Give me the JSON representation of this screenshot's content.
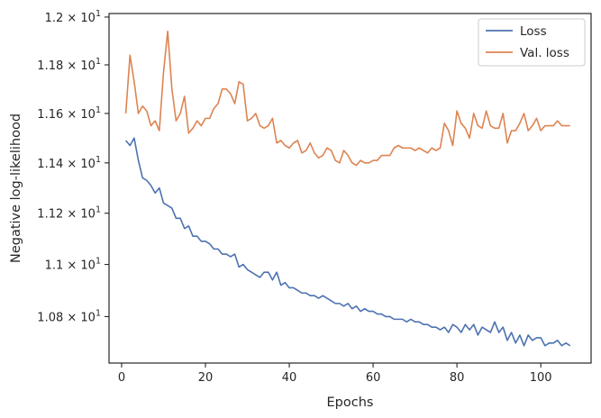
{
  "chart_data": {
    "type": "line",
    "title": "",
    "xlabel": "Epochs",
    "ylabel": "Negative log-likelihood",
    "xlim": [
      -3,
      112
    ],
    "ylim": [
      10.625,
      12.015
    ],
    "y_scale": "log",
    "grid": false,
    "legend_position": "top-right",
    "x_ticks": [
      {
        "value": 0,
        "label": "0"
      },
      {
        "value": 20,
        "label": "20"
      },
      {
        "value": 40,
        "label": "40"
      },
      {
        "value": 60,
        "label": "60"
      },
      {
        "value": 80,
        "label": "80"
      },
      {
        "value": 100,
        "label": "100"
      }
    ],
    "y_ticks": [
      {
        "value": 10.8,
        "mantissa": "1.08",
        "exponent": "1"
      },
      {
        "value": 11.0,
        "mantissa": "1.1",
        "exponent": "1"
      },
      {
        "value": 11.2,
        "mantissa": "1.12",
        "exponent": "1"
      },
      {
        "value": 11.4,
        "mantissa": "1.14",
        "exponent": "1"
      },
      {
        "value": 11.6,
        "mantissa": "1.16",
        "exponent": "1"
      },
      {
        "value": 11.8,
        "mantissa": "1.18",
        "exponent": "1"
      },
      {
        "value": 12.0,
        "mantissa": "1.2",
        "exponent": "1"
      }
    ],
    "x": [
      1,
      2,
      3,
      4,
      5,
      6,
      7,
      8,
      9,
      10,
      11,
      12,
      13,
      14,
      15,
      16,
      17,
      18,
      19,
      20,
      21,
      22,
      23,
      24,
      25,
      26,
      27,
      28,
      29,
      30,
      31,
      32,
      33,
      34,
      35,
      36,
      37,
      38,
      39,
      40,
      41,
      42,
      43,
      44,
      45,
      46,
      47,
      48,
      49,
      50,
      51,
      52,
      53,
      54,
      55,
      56,
      57,
      58,
      59,
      60,
      61,
      62,
      63,
      64,
      65,
      66,
      67,
      68,
      69,
      70,
      71,
      72,
      73,
      74,
      75,
      76,
      77,
      78,
      79,
      80,
      81,
      82,
      83,
      84,
      85,
      86,
      87,
      88,
      89,
      90,
      91,
      92,
      93,
      94,
      95,
      96,
      97,
      98,
      99,
      100,
      101,
      102,
      103,
      104,
      105,
      106,
      107
    ],
    "series": [
      {
        "name": "Loss",
        "color": "#4c72b0",
        "values": [
          11.49,
          11.47,
          11.5,
          11.41,
          11.34,
          11.33,
          11.31,
          11.28,
          11.3,
          11.24,
          11.23,
          11.22,
          11.18,
          11.18,
          11.14,
          11.15,
          11.11,
          11.11,
          11.09,
          11.09,
          11.08,
          11.06,
          11.06,
          11.04,
          11.04,
          11.03,
          11.04,
          10.99,
          11.0,
          10.98,
          10.97,
          10.96,
          10.95,
          10.97,
          10.97,
          10.94,
          10.97,
          10.92,
          10.93,
          10.91,
          10.91,
          10.9,
          10.89,
          10.89,
          10.88,
          10.88,
          10.87,
          10.88,
          10.87,
          10.86,
          10.85,
          10.85,
          10.84,
          10.85,
          10.83,
          10.84,
          10.82,
          10.83,
          10.82,
          10.82,
          10.81,
          10.81,
          10.8,
          10.8,
          10.79,
          10.79,
          10.79,
          10.78,
          10.79,
          10.78,
          10.78,
          10.77,
          10.77,
          10.76,
          10.76,
          10.75,
          10.76,
          10.74,
          10.77,
          10.76,
          10.74,
          10.77,
          10.75,
          10.77,
          10.73,
          10.76,
          10.75,
          10.74,
          10.78,
          10.74,
          10.76,
          10.71,
          10.74,
          10.7,
          10.73,
          10.69,
          10.73,
          10.71,
          10.72,
          10.72,
          10.69,
          10.7,
          10.7,
          10.71,
          10.69,
          10.7,
          10.69
        ]
      },
      {
        "name": "Val. loss",
        "color": "#dd8452",
        "values": [
          11.6,
          11.84,
          11.73,
          11.6,
          11.63,
          11.61,
          11.55,
          11.57,
          11.53,
          11.77,
          11.94,
          11.7,
          11.57,
          11.6,
          11.67,
          11.52,
          11.54,
          11.57,
          11.55,
          11.58,
          11.58,
          11.62,
          11.64,
          11.7,
          11.7,
          11.68,
          11.64,
          11.73,
          11.72,
          11.57,
          11.58,
          11.6,
          11.55,
          11.54,
          11.55,
          11.58,
          11.48,
          11.49,
          11.47,
          11.46,
          11.48,
          11.49,
          11.44,
          11.45,
          11.48,
          11.44,
          11.42,
          11.43,
          11.46,
          11.45,
          11.41,
          11.4,
          11.45,
          11.43,
          11.4,
          11.39,
          11.41,
          11.4,
          11.4,
          11.41,
          11.41,
          11.43,
          11.43,
          11.43,
          11.46,
          11.47,
          11.46,
          11.46,
          11.46,
          11.45,
          11.46,
          11.45,
          11.44,
          11.46,
          11.45,
          11.46,
          11.56,
          11.53,
          11.47,
          11.61,
          11.56,
          11.54,
          11.5,
          11.6,
          11.55,
          11.54,
          11.61,
          11.55,
          11.54,
          11.54,
          11.6,
          11.48,
          11.53,
          11.53,
          11.56,
          11.6,
          11.53,
          11.55,
          11.58,
          11.53,
          11.55,
          11.55,
          11.55,
          11.57,
          11.55,
          11.55,
          11.55
        ]
      }
    ]
  }
}
